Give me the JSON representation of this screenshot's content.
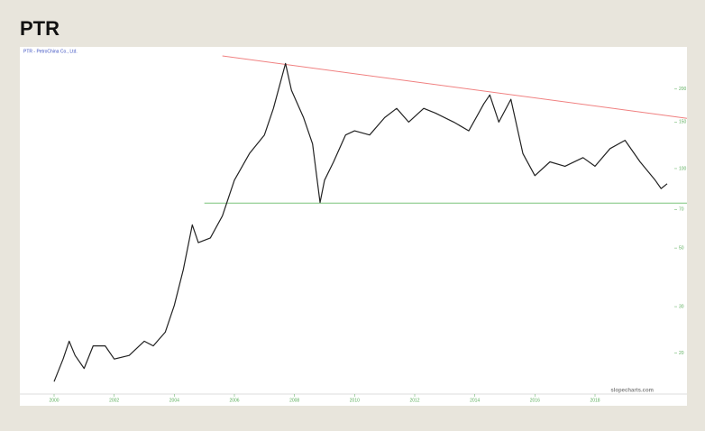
{
  "chart_data": {
    "type": "line",
    "title": "PTR",
    "legend_text": "PTR - PetroChina Co., Ltd.",
    "watermark": "slopecharts.com",
    "log_scale": true,
    "x": [
      2000.0,
      2000.3,
      2000.5,
      2000.7,
      2001.0,
      2001.3,
      2001.7,
      2002.0,
      2002.5,
      2003.0,
      2003.3,
      2003.7,
      2004.0,
      2004.3,
      2004.6,
      2004.8,
      2005.2,
      2005.6,
      2006.0,
      2006.5,
      2007.0,
      2007.3,
      2007.7,
      2007.9,
      2008.3,
      2008.6,
      2008.85,
      2009.0,
      2009.3,
      2009.7,
      2010.0,
      2010.5,
      2011.0,
      2011.4,
      2011.8,
      2012.3,
      2012.7,
      2013.3,
      2013.8,
      2014.3,
      2014.5,
      2014.8,
      2015.2,
      2015.6,
      2016.0,
      2016.5,
      2017.0,
      2017.6,
      2018.0,
      2018.5,
      2019.0,
      2019.5,
      2020.0,
      2020.2,
      2020.4
    ],
    "series": [
      {
        "name": "PTR",
        "color": "#222222",
        "values": [
          15.6,
          19,
          22.2,
          19.6,
          17.5,
          21.3,
          21.3,
          19,
          19.6,
          22.2,
          21.3,
          24,
          30.3,
          41.4,
          61.2,
          52.4,
          54.6,
          66.2,
          90.4,
          114,
          134,
          169,
          250,
          198,
          156,
          124,
          74.4,
          90.4,
          106,
          134,
          139,
          134,
          156,
          169,
          150,
          169,
          162,
          150,
          139,
          176,
          190,
          150,
          183,
          114,
          94,
          106,
          102,
          110,
          102,
          119,
          128,
          106,
          90.4,
          84,
          87.6
        ]
      }
    ],
    "xlim": [
      1998.86,
      2021.06
    ],
    "xticks": [
      2000,
      2002,
      2004,
      2006,
      2008,
      2010,
      2012,
      2014,
      2016,
      2018
    ],
    "ylim": [
      14,
      280
    ],
    "yticks": [
      20,
      30,
      50,
      70,
      100,
      150,
      200
    ],
    "hlines": [
      {
        "value": 74,
        "color": "#7cc47c"
      }
    ],
    "trendline": {
      "x": [
        2005.6,
        2021.06
      ],
      "y": [
        267,
        155
      ],
      "color": "#f08080"
    }
  }
}
